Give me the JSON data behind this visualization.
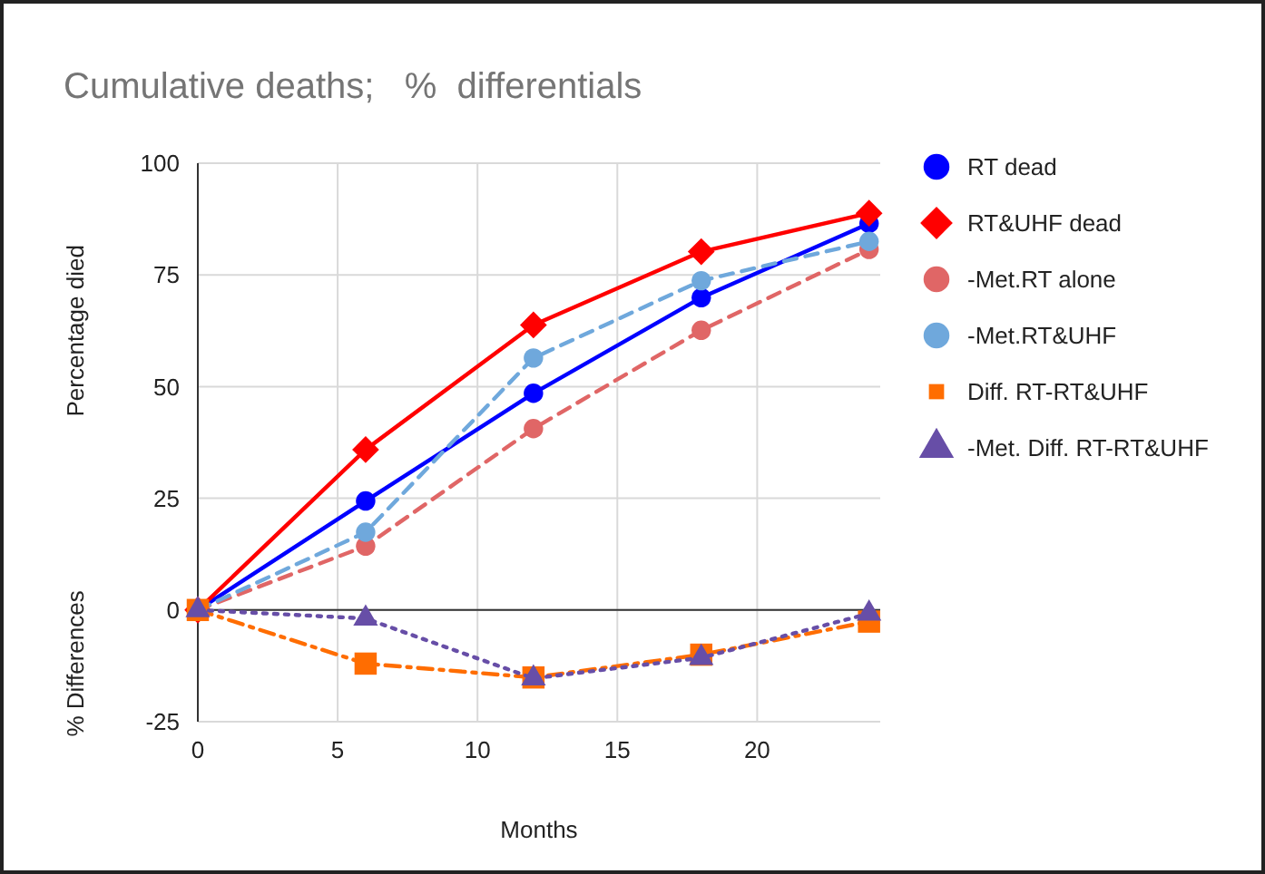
{
  "chart_data": {
    "type": "line",
    "title": "Cumulative deaths;   %  differentials",
    "xlabel": "Months",
    "ylabel": "Percentage died",
    "annotations": [
      "% Differences"
    ],
    "x": [
      0,
      6,
      12,
      18,
      24
    ],
    "series": [
      {
        "name": "RT dead",
        "color": "#0000ff",
        "marker": "circle",
        "line_style": "solid",
        "values": [
          0,
          24.4,
          48.5,
          69.9,
          86.5
        ]
      },
      {
        "name": "RT&UHF dead",
        "color": "#ff0000",
        "marker": "diamond",
        "line_style": "solid",
        "values": [
          0,
          35.9,
          63.8,
          80.2,
          88.8
        ]
      },
      {
        "name": "-Met.RT alone",
        "color": "#e06666",
        "marker": "circle",
        "line_style": "dashed",
        "values": [
          0,
          14.3,
          40.6,
          62.6,
          80.7
        ]
      },
      {
        "name": "-Met.RT&UHF",
        "color": "#6fa8dc",
        "marker": "circle",
        "line_style": "dashed",
        "values": [
          0,
          17.4,
          56.4,
          73.7,
          82.5
        ]
      },
      {
        "name": "Diff. RT-RT&UHF",
        "color": "#ff6d01",
        "marker": "square",
        "line_style": "dashdot",
        "values": [
          0,
          -12,
          -15.1,
          -10,
          -2.6
        ]
      },
      {
        "name": "-Met. Diff. RT-RT&UHF",
        "color": "#674ea7",
        "marker": "triangle",
        "line_style": "dotted",
        "values": [
          0,
          -1.9,
          -15.3,
          -10.7,
          -0.8
        ]
      }
    ],
    "xlim": [
      0,
      24.4
    ],
    "xticks": [
      0,
      5,
      10,
      15,
      20
    ],
    "ylim": [
      -25,
      100
    ],
    "yticks": [
      -25,
      0,
      25,
      50,
      75,
      100
    ],
    "grid": true,
    "legend": "right"
  }
}
